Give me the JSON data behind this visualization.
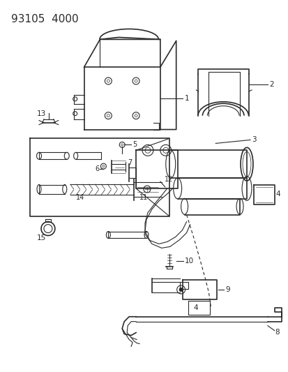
{
  "title": "93105  4000",
  "bg_color": "#ffffff",
  "line_color": "#2a2a2a",
  "title_fontsize": 11,
  "label_fontsize": 7.5,
  "fig_width": 4.14,
  "fig_height": 5.33,
  "dpi": 100
}
